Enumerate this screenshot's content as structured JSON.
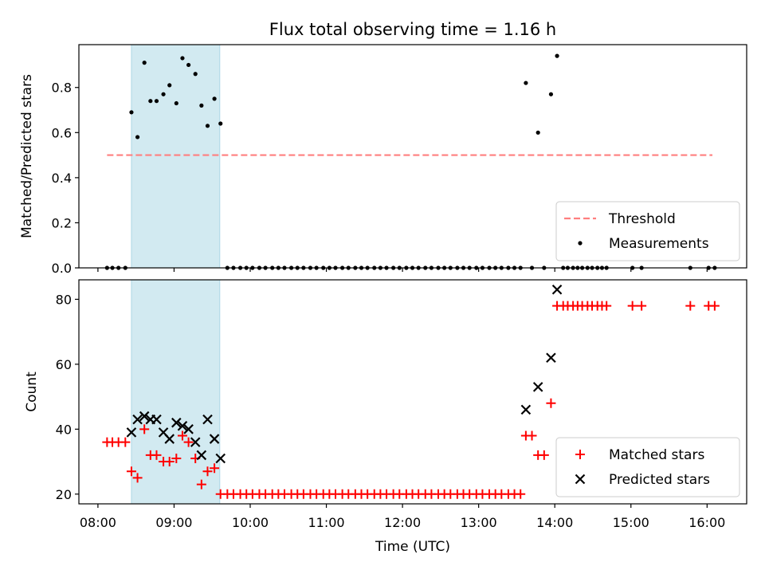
{
  "chart_data": {
    "title": "Flux total observing time = 1.16 h",
    "xlabel": "Time (UTC)",
    "xlim": [
      7.75,
      16.52
    ],
    "x_ticks": [
      8,
      9,
      10,
      11,
      12,
      13,
      14,
      15,
      16
    ],
    "x_tick_labels": [
      "08:00",
      "09:00",
      "10:00",
      "11:00",
      "12:00",
      "13:00",
      "14:00",
      "15:00",
      "16:00"
    ],
    "highlight_span": [
      8.44,
      9.6
    ],
    "highlight_color": "#add8e6",
    "panels": [
      {
        "type": "scatter",
        "ylabel": "Matched/Predicted stars",
        "ylim": [
          0,
          0.99
        ],
        "y_ticks": [
          0.0,
          0.2,
          0.4,
          0.6,
          0.8
        ],
        "y_tick_labels": [
          "0.0",
          "0.2",
          "0.4",
          "0.6",
          "0.8"
        ],
        "threshold": {
          "name": "Threshold",
          "value": 0.5,
          "x_range": [
            8.12,
            16.07
          ],
          "color": "#ff7f7f"
        },
        "series": [
          {
            "name": "Measurements",
            "marker": "dot",
            "color": "#000000",
            "x": [
              8.12,
              8.19,
              8.27,
              8.36,
              8.44,
              8.52,
              8.61,
              8.69,
              8.77,
              8.86,
              8.94,
              9.03,
              9.11,
              9.19,
              9.28,
              9.36,
              9.44,
              9.53,
              9.61,
              9.7,
              9.78,
              9.87,
              9.95,
              10.03,
              10.12,
              10.2,
              10.29,
              10.37,
              10.45,
              10.54,
              10.62,
              10.7,
              10.79,
              10.87,
              10.96,
              11.04,
              11.12,
              11.21,
              11.29,
              11.38,
              11.46,
              11.54,
              11.63,
              11.71,
              11.79,
              11.88,
              11.96,
              12.05,
              12.13,
              12.21,
              12.3,
              12.38,
              12.47,
              12.55,
              12.63,
              12.72,
              12.8,
              12.88,
              12.97,
              13.05,
              13.14,
              13.22,
              13.3,
              13.39,
              13.47,
              13.55,
              13.62,
              13.7,
              13.78,
              13.86,
              13.95,
              14.03,
              14.11,
              14.17,
              14.24,
              14.3,
              14.36,
              14.43,
              14.49,
              14.56,
              14.62,
              14.68,
              15.02,
              15.14,
              15.78,
              16.02,
              16.1
            ],
            "y": [
              0,
              0,
              0,
              0,
              0.69,
              0.58,
              0.91,
              0.74,
              0.74,
              0.77,
              0.81,
              0.73,
              0.93,
              0.9,
              0.86,
              0.72,
              0.63,
              0.75,
              0.64,
              0,
              0,
              0,
              0,
              0,
              0,
              0,
              0,
              0,
              0,
              0,
              0,
              0,
              0,
              0,
              0,
              0,
              0,
              0,
              0,
              0,
              0,
              0,
              0,
              0,
              0,
              0,
              0,
              0,
              0,
              0,
              0,
              0,
              0,
              0,
              0,
              0,
              0,
              0,
              0,
              0,
              0,
              0,
              0,
              0,
              0,
              0,
              0.82,
              0,
              0.6,
              0,
              0.77,
              0.94,
              0,
              0,
              0,
              0,
              0,
              0,
              0,
              0,
              0,
              0,
              0,
              0,
              0,
              0,
              0
            ]
          }
        ],
        "legend": {
          "location": "bottom-right",
          "entries": [
            "Threshold",
            "Measurements"
          ]
        }
      },
      {
        "type": "scatter",
        "ylabel": "Count",
        "ylim": [
          17,
          86
        ],
        "y_ticks": [
          20,
          40,
          60,
          80
        ],
        "y_tick_labels": [
          "20",
          "40",
          "60",
          "80"
        ],
        "series": [
          {
            "name": "Matched stars",
            "marker": "plus",
            "color": "#ff0000",
            "x": [
              8.12,
              8.19,
              8.27,
              8.36,
              8.44,
              8.52,
              8.61,
              8.69,
              8.77,
              8.86,
              8.94,
              9.03,
              9.11,
              9.19,
              9.28,
              9.36,
              9.44,
              9.53,
              9.61,
              9.7,
              9.78,
              9.87,
              9.95,
              10.03,
              10.12,
              10.2,
              10.29,
              10.37,
              10.45,
              10.54,
              10.62,
              10.7,
              10.79,
              10.87,
              10.96,
              11.04,
              11.12,
              11.21,
              11.29,
              11.38,
              11.46,
              11.54,
              11.63,
              11.71,
              11.79,
              11.88,
              11.96,
              12.05,
              12.13,
              12.21,
              12.3,
              12.38,
              12.47,
              12.55,
              12.63,
              12.72,
              12.8,
              12.88,
              12.97,
              13.05,
              13.14,
              13.22,
              13.3,
              13.39,
              13.47,
              13.55,
              13.62,
              13.7,
              13.78,
              13.86,
              13.95,
              14.03,
              14.11,
              14.17,
              14.24,
              14.3,
              14.36,
              14.43,
              14.49,
              14.56,
              14.62,
              14.68,
              15.02,
              15.14,
              15.78,
              16.02,
              16.1
            ],
            "y": [
              36,
              36,
              36,
              36,
              27,
              25,
              40,
              32,
              32,
              30,
              30,
              31,
              38,
              36,
              31,
              23,
              27,
              28,
              20,
              20,
              20,
              20,
              20,
              20,
              20,
              20,
              20,
              20,
              20,
              20,
              20,
              20,
              20,
              20,
              20,
              20,
              20,
              20,
              20,
              20,
              20,
              20,
              20,
              20,
              20,
              20,
              20,
              20,
              20,
              20,
              20,
              20,
              20,
              20,
              20,
              20,
              20,
              20,
              20,
              20,
              20,
              20,
              20,
              20,
              20,
              20,
              38,
              38,
              32,
              32,
              48,
              78,
              78,
              78,
              78,
              78,
              78,
              78,
              78,
              78,
              78,
              78,
              78,
              78,
              78,
              78,
              78
            ]
          },
          {
            "name": "Predicted stars",
            "marker": "x",
            "color": "#000000",
            "x": [
              8.44,
              8.52,
              8.61,
              8.69,
              8.77,
              8.86,
              8.94,
              9.03,
              9.11,
              9.19,
              9.28,
              9.36,
              9.44,
              9.53,
              9.61,
              13.62,
              13.78,
              13.95,
              14.03
            ],
            "y": [
              39,
              43,
              44,
              43,
              43,
              39,
              37,
              42,
              41,
              40,
              36,
              32,
              43,
              37,
              31,
              46,
              53,
              62,
              83
            ]
          }
        ],
        "legend": {
          "location": "bottom-right",
          "entries": [
            "Matched stars",
            "Predicted stars"
          ]
        }
      }
    ]
  }
}
